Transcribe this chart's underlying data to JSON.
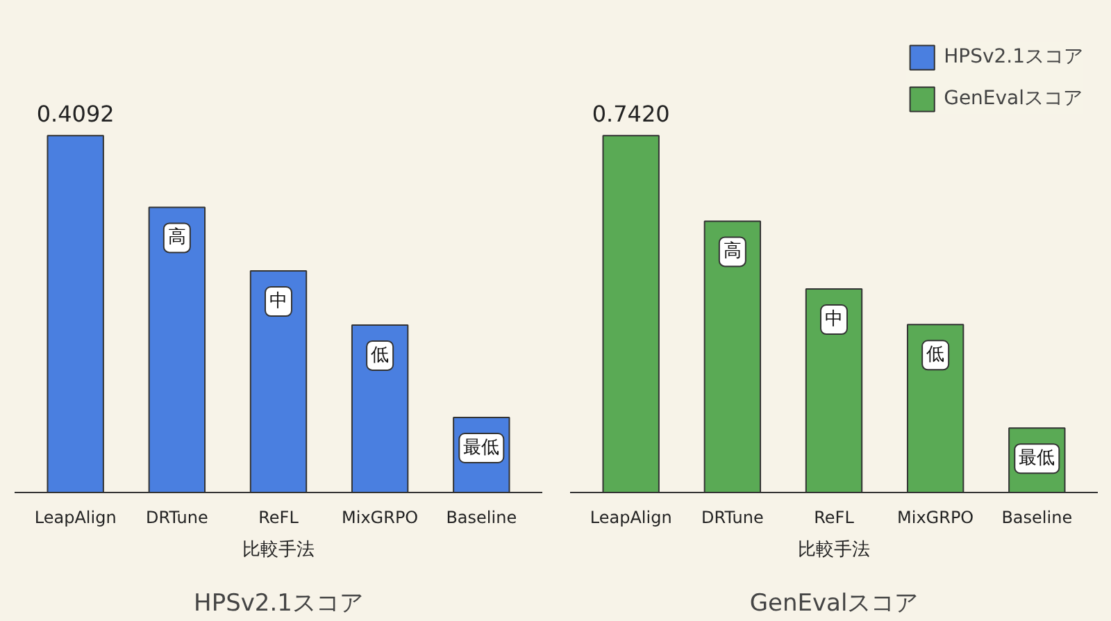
{
  "chart_data": [
    {
      "type": "bar",
      "categories": [
        "LeapAlign",
        "DRTune",
        "ReFL",
        "MixGRPO",
        "Baseline"
      ],
      "xlabel": "HPSv2.1スコア",
      "legend": "top right",
      "tick_labels": "x",
      "series": [
        {
          "name": "HPSv2.1スコア",
          "color": "#4a7fe0",
          "values": [
            0.4092,
            0.327,
            0.254,
            0.192,
            0.086
          ],
          "value_labels": [
            "0.4092",
            null,
            null,
            null,
            null
          ]
        }
      ],
      "annotations": [
        "比較手法",
        {
          "text": "高",
          "x": "DRTune",
          "y": 0.327
        },
        {
          "text": "中",
          "x": "ReFL",
          "y": 0.254
        },
        {
          "text": "低",
          "x": "MixGRPO",
          "y": 0.192
        },
        {
          "text": "最低",
          "x": "Baseline",
          "y": 0.086
        }
      ]
    },
    {
      "type": "bar",
      "categories": [
        "LeapAlign",
        "DRTune",
        "ReFL",
        "MixGRPO",
        "Baseline"
      ],
      "xlabel": "GenEvalスコア",
      "legend": "top right",
      "tick_labels": "x",
      "series": [
        {
          "name": "GenEvalスコア",
          "color": "#5aaa55",
          "values": [
            0.742,
            0.564,
            0.423,
            0.349,
            0.134
          ],
          "value_labels": [
            "0.7420",
            null,
            null,
            null,
            null
          ]
        }
      ],
      "annotations": [
        "比較手法",
        {
          "text": "高",
          "x": "DRTune",
          "y": 0.564
        },
        {
          "text": "中",
          "x": "ReFL",
          "y": 0.423
        },
        {
          "text": "低",
          "x": "MixGRPO",
          "y": 0.349
        },
        {
          "text": "最低",
          "x": "Baseline",
          "y": 0.134
        }
      ]
    }
  ]
}
